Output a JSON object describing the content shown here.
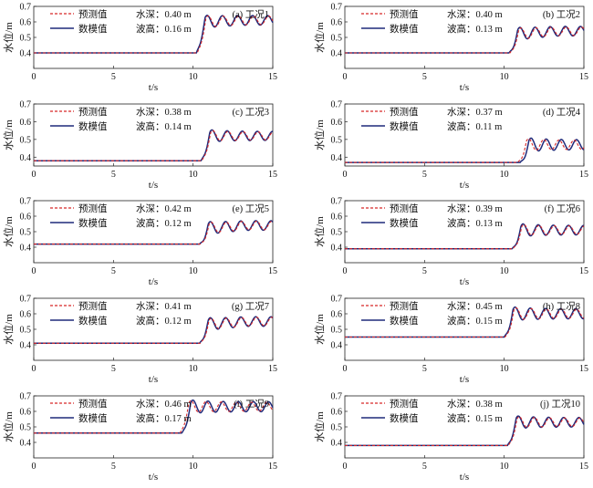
{
  "chart_data": [
    {
      "type": "line",
      "panel_label": "(a) 工况1",
      "depth_text": "水深：0.40 m",
      "height_text": "波高：0.16 m",
      "xlabel": "t/s",
      "ylabel": "水位/m",
      "xlim": [
        0,
        15
      ],
      "ylim": [
        0.3,
        0.7
      ],
      "xticks": [
        "0",
        "5",
        "10",
        "15"
      ],
      "yticks": [
        "0.4",
        "0.5",
        "0.6",
        "0.7"
      ],
      "legend": [
        "预测值",
        "数模值"
      ],
      "base": 0.4,
      "start": 10.2,
      "rise": 0.2,
      "wave": 0.03,
      "trend": 0.01,
      "pred_shift": 0.06,
      "pred_amp": 0.9
    },
    {
      "type": "line",
      "panel_label": "(b) 工况2",
      "depth_text": "水深：0.40 m",
      "height_text": "波高：0.13 m",
      "xlabel": "t/s",
      "ylabel": "水位/m",
      "xlim": [
        0,
        15
      ],
      "ylim": [
        0.3,
        0.7
      ],
      "xticks": [
        "0",
        "5",
        "10",
        "15"
      ],
      "yticks": [
        "0.4",
        "0.5",
        "0.6",
        "0.7"
      ],
      "legend": [
        "预测值",
        "数模值"
      ],
      "base": 0.4,
      "start": 10.3,
      "rise": 0.12,
      "wave": 0.03,
      "trend": 0.02,
      "pred_shift": 0.06,
      "pred_amp": 0.9
    },
    {
      "type": "line",
      "panel_label": "(c) 工况3",
      "depth_text": "水深：0.38 m",
      "height_text": "波高：0.14 m",
      "xlabel": "t/s",
      "ylabel": "水位/m",
      "xlim": [
        0,
        15
      ],
      "ylim": [
        0.35,
        0.7
      ],
      "xticks": [
        "0",
        "5",
        "10",
        "15"
      ],
      "yticks": [
        "0.4",
        "0.5",
        "0.6",
        "0.7"
      ],
      "legend": [
        "预测值",
        "数模值"
      ],
      "base": 0.38,
      "start": 10.5,
      "rise": 0.14,
      "wave": 0.025,
      "trend": 0.0,
      "pred_shift": 0.05,
      "pred_amp": 0.9
    },
    {
      "type": "line",
      "panel_label": "(d) 工况4",
      "depth_text": "水深：0.37 m",
      "height_text": "波高：0.11 m",
      "xlabel": "t/s",
      "ylabel": "水位/m",
      "xlim": [
        0,
        15
      ],
      "ylim": [
        0.35,
        0.7
      ],
      "xticks": [
        "0",
        "5",
        "10",
        "15"
      ],
      "yticks": [
        "0.4",
        "0.5",
        "0.6",
        "0.7"
      ],
      "legend": [
        "预测值",
        "数模值"
      ],
      "base": 0.37,
      "start": 11.0,
      "rise": 0.1,
      "wave": 0.028,
      "trend": 0.0,
      "pred_shift": -0.15,
      "pred_amp": 0.9
    },
    {
      "type": "line",
      "panel_label": "(e) 工况5",
      "depth_text": "水深：0.42 m",
      "height_text": "波高：0.12 m",
      "xlabel": "t/s",
      "ylabel": "水位/m",
      "xlim": [
        0,
        15
      ],
      "ylim": [
        0.3,
        0.7
      ],
      "xticks": [
        "0",
        "5",
        "10",
        "15"
      ],
      "yticks": [
        "0.4",
        "0.5",
        "0.6",
        "0.7"
      ],
      "legend": [
        "预测值",
        "数模值"
      ],
      "base": 0.42,
      "start": 10.4,
      "rise": 0.1,
      "wave": 0.03,
      "trend": 0.02,
      "pred_shift": 0.05,
      "pred_amp": 0.9
    },
    {
      "type": "line",
      "panel_label": "(f) 工况6",
      "depth_text": "水深：0.39 m",
      "height_text": "波高：0.13 m",
      "xlabel": "t/s",
      "ylabel": "水位/m",
      "xlim": [
        0,
        15
      ],
      "ylim": [
        0.3,
        0.7
      ],
      "xticks": [
        "0",
        "5",
        "10",
        "15"
      ],
      "yticks": [
        "0.4",
        "0.5",
        "0.6",
        "0.7"
      ],
      "legend": [
        "预测值",
        "数模值"
      ],
      "base": 0.39,
      "start": 10.5,
      "rise": 0.12,
      "wave": 0.03,
      "trend": 0.0,
      "pred_shift": 0.05,
      "pred_amp": 0.9
    },
    {
      "type": "line",
      "panel_label": "(g) 工况7",
      "depth_text": "水深：0.41 m",
      "height_text": "波高：0.12 m",
      "xlabel": "t/s",
      "ylabel": "水位/m",
      "xlim": [
        0,
        15
      ],
      "ylim": [
        0.3,
        0.7
      ],
      "xticks": [
        "0",
        "5",
        "10",
        "15"
      ],
      "yticks": [
        "0.4",
        "0.5",
        "0.6",
        "0.7"
      ],
      "legend": [
        "预测值",
        "数模值"
      ],
      "base": 0.41,
      "start": 10.4,
      "rise": 0.12,
      "wave": 0.03,
      "trend": 0.02,
      "pred_shift": 0.05,
      "pred_amp": 0.9
    },
    {
      "type": "line",
      "panel_label": "(h) 工况8",
      "depth_text": "水深：0.45 m",
      "height_text": "波高：0.15 m",
      "xlabel": "t/s",
      "ylabel": "水位/m",
      "xlim": [
        0,
        15
      ],
      "ylim": [
        0.3,
        0.7
      ],
      "xticks": [
        "0",
        "5",
        "10",
        "15"
      ],
      "yticks": [
        "0.4",
        "0.5",
        "0.6",
        "0.7"
      ],
      "legend": [
        "预测值",
        "数模值"
      ],
      "base": 0.45,
      "start": 10.0,
      "rise": 0.15,
      "wave": 0.032,
      "trend": 0.0,
      "pred_shift": 0.06,
      "pred_amp": 0.9
    },
    {
      "type": "line",
      "panel_label": "(i) 工况9",
      "depth_text": "水深：0.46 m",
      "height_text": "波高：0.17 m",
      "xlabel": "t/s",
      "ylabel": "水位/m",
      "xlim": [
        0,
        15
      ],
      "ylim": [
        0.3,
        0.7
      ],
      "xticks": [
        "0",
        "5",
        "10",
        "15"
      ],
      "yticks": [
        "0.4",
        "0.5",
        "0.6",
        "0.7"
      ],
      "legend": [
        "预测值",
        "数模值"
      ],
      "base": 0.46,
      "start": 9.3,
      "rise": 0.17,
      "wave": 0.032,
      "trend": 0.0,
      "pred_shift": -0.12,
      "pred_amp": 0.9
    },
    {
      "type": "line",
      "panel_label": "(j) 工况10",
      "depth_text": "水深：0.38 m",
      "height_text": "波高：0.15 m",
      "xlabel": "t/s",
      "ylabel": "水位/m",
      "xlim": [
        0,
        15
      ],
      "ylim": [
        0.3,
        0.7
      ],
      "xticks": [
        "0",
        "5",
        "10",
        "15"
      ],
      "yticks": [
        "0.4",
        "0.5",
        "0.6",
        "0.7"
      ],
      "legend": [
        "预测值",
        "数模值"
      ],
      "base": 0.38,
      "start": 10.2,
      "rise": 0.15,
      "wave": 0.03,
      "trend": 0.0,
      "pred_shift": 0.06,
      "pred_amp": 0.9
    }
  ],
  "colors": {
    "predicted": "#d62728",
    "simulated": "#1f2a7a"
  }
}
